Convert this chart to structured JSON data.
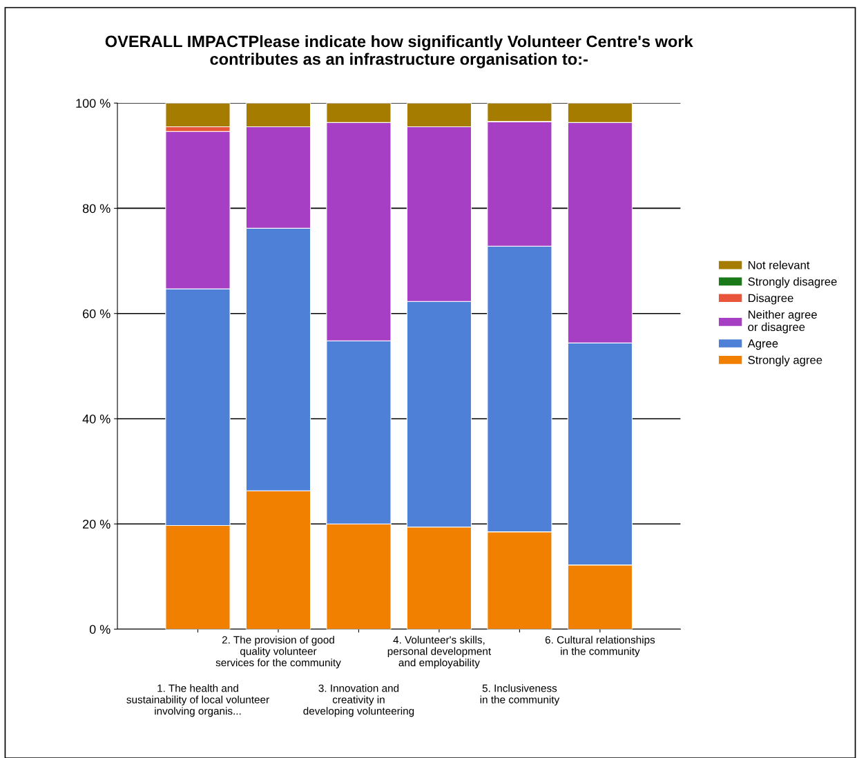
{
  "chart_data": {
    "type": "bar",
    "stacked": true,
    "title": "OVERALL IMPACTPlease indicate how significantly Volunteer Centre's work\ncontributes as an infrastructure organisation to:-",
    "categories": [
      "1. The health and\nsustainability of local volunteer\ninvolving organis...",
      "2. The provision of good\nquality volunteer\nservices for the community",
      "3. Innovation and\ncreativity in\ndeveloping volunteering",
      "4. Volunteer's skills,\npersonal development\nand employability",
      "5. Inclusiveness\nin the community",
      "6. Cultural relationships\nin the community"
    ],
    "series": [
      {
        "name": "Strongly agree",
        "color": "#f28000",
        "values": [
          19.7,
          26.3,
          20.0,
          19.4,
          18.5,
          12.2
        ]
      },
      {
        "name": "Agree",
        "color": "#4f80d8",
        "values": [
          45.0,
          49.9,
          34.8,
          42.9,
          54.3,
          42.2
        ]
      },
      {
        "name": "Neither agree\nor disagree",
        "color": "#a63fc4",
        "values": [
          29.9,
          19.3,
          41.5,
          33.2,
          23.7,
          41.9
        ]
      },
      {
        "name": "Disagree",
        "color": "#e8553a",
        "values": [
          0.9,
          0,
          0,
          0,
          0,
          0
        ]
      },
      {
        "name": "Strongly disagree",
        "color": "#1a7a1a",
        "values": [
          0,
          0,
          0,
          0,
          0,
          0
        ]
      },
      {
        "name": "Not relevant",
        "color": "#a67c00",
        "values": [
          4.5,
          4.5,
          3.7,
          4.5,
          3.5,
          3.7
        ]
      }
    ],
    "ylim": [
      0,
      100
    ],
    "yticks": [
      {
        "value": 0,
        "label": "0 %"
      },
      {
        "value": 20,
        "label": "20 %"
      },
      {
        "value": 40,
        "label": "40 %"
      },
      {
        "value": 60,
        "label": "60 %"
      },
      {
        "value": 80,
        "label": "80 %"
      },
      {
        "value": 100,
        "label": "100 %"
      }
    ],
    "grid": "y",
    "legend": "right"
  }
}
